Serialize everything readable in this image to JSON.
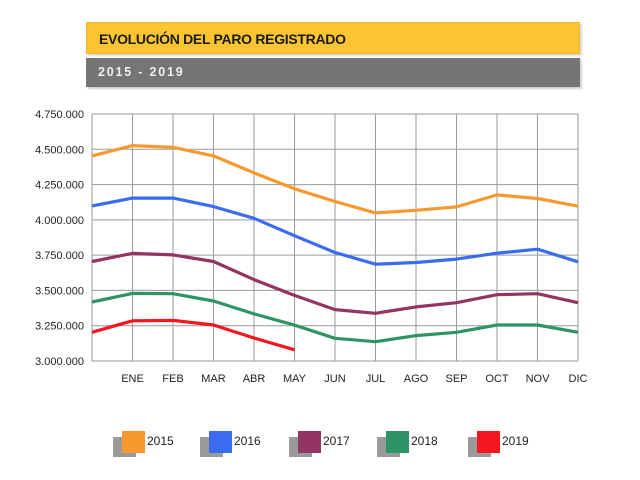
{
  "header": {
    "title": "EVOLUCIÓN DEL PARO REGISTRADO",
    "subtitle": "2015 - 2019"
  },
  "colors": {
    "title_bg": "#FBC531",
    "subtitle_bg": "#757575",
    "grid": "#9a9a9a"
  },
  "chart_data": {
    "type": "line",
    "title": "EVOLUCIÓN DEL PARO REGISTRADO",
    "subtitle": "2015 - 2019",
    "xlabel": "",
    "ylabel": "",
    "x_labels": [
      "",
      "ENE",
      "FEB",
      "MAR",
      "ABR",
      "MAY",
      "JUN",
      "JUL",
      "AGO",
      "SEP",
      "OCT",
      "NOV",
      "DIC"
    ],
    "ylim": [
      3000000,
      4750000
    ],
    "y_ticks": [
      3000000,
      3250000,
      3500000,
      3750000,
      4000000,
      4250000,
      4500000,
      4750000
    ],
    "y_tick_labels": [
      "3.000.000",
      "3.250.000",
      "3.500.000",
      "3.750.000",
      "4.000.000",
      "4.250.000",
      "4.500.000",
      "4.750.000"
    ],
    "grid": true,
    "legend_position": "bottom",
    "series": [
      {
        "name": "2015",
        "color": "#F7992E",
        "values": [
          4453000,
          4526000,
          4514000,
          4453000,
          4333000,
          4220000,
          4130000,
          4049000,
          4068000,
          4092000,
          4177000,
          4151000,
          4097000
        ]
      },
      {
        "name": "2016",
        "color": "#3B6CF0",
        "values": [
          4099000,
          4154000,
          4154000,
          4094000,
          4011000,
          3888000,
          3769000,
          3686000,
          3698000,
          3722000,
          3764000,
          3792000,
          3703000
        ]
      },
      {
        "name": "2017",
        "color": "#943462",
        "values": [
          3705000,
          3762000,
          3752000,
          3705000,
          3577000,
          3465000,
          3364000,
          3338000,
          3383000,
          3413000,
          3470000,
          3477000,
          3413000
        ]
      },
      {
        "name": "2018",
        "color": "#2E9465",
        "values": [
          3418000,
          3479000,
          3477000,
          3425000,
          3334000,
          3254000,
          3161000,
          3137000,
          3180000,
          3203000,
          3255000,
          3255000,
          3203000
        ]
      },
      {
        "name": "2019",
        "color": "#F51620",
        "values": [
          3203000,
          3285000,
          3288000,
          3255000,
          3163000,
          3079000,
          null,
          null,
          null,
          null,
          null,
          null,
          null
        ]
      }
    ]
  }
}
